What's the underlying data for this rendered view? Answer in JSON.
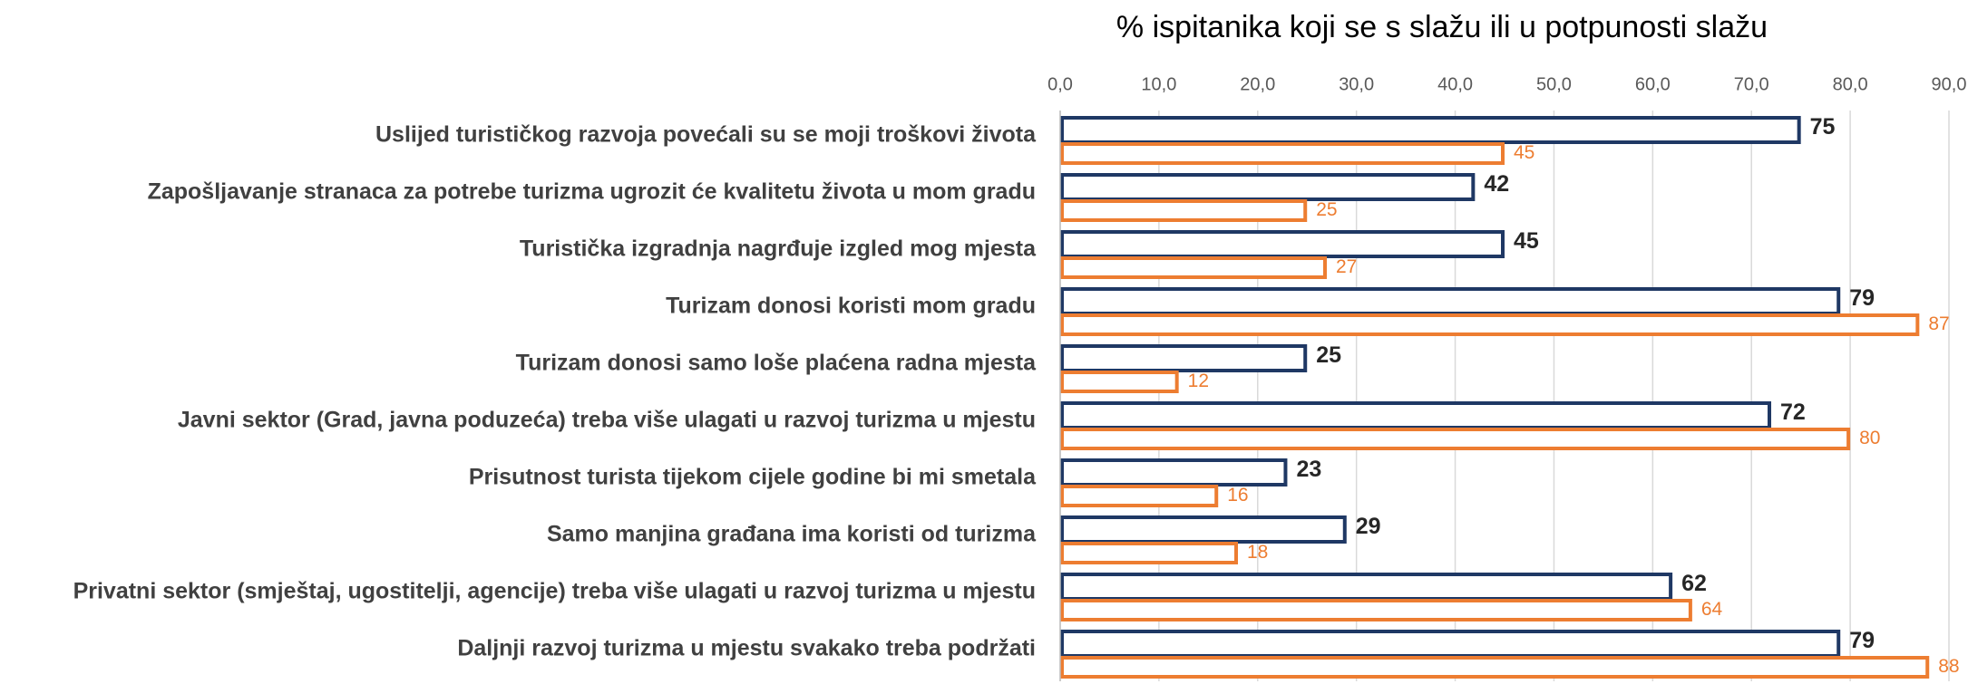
{
  "chart_data": {
    "type": "hbar",
    "title": "% ispitanika koji se s slažu ili u potpunosti slažu",
    "categories": [
      "Uslijed turističkog razvoja povećali su se moji troškovi života",
      "Zapošljavanje stranaca za potrebe turizma ugrozit će kvalitetu života u mom gradu",
      "Turistička izgradnja nagrđuje izgled mog mjesta",
      "Turizam donosi koristi mom gradu",
      "Turizam donosi samo loše plaćena radna mjesta",
      "Javni sektor (Grad, javna poduzeća) treba više ulagati u razvoj turizma u mjestu",
      "Prisutnost turista tijekom cijele godine bi mi smetala",
      "Samo manjina građana ima koristi od turizma",
      "Privatni sektor (smještaj, ugostitelji, agencije) treba više ulagati u razvoj turizma u mjestu",
      "Daljnji razvoj turizma u mjestu svakako treba podržati"
    ],
    "series": [
      {
        "color": "#1f3864",
        "values": [
          75,
          42,
          45,
          79,
          25,
          72,
          23,
          29,
          62,
          79
        ]
      },
      {
        "color": "#ed7d31",
        "values": [
          45,
          25,
          27,
          87,
          12,
          80,
          16,
          18,
          64,
          88
        ]
      }
    ],
    "xlim": [
      0,
      90
    ],
    "xticks": [
      {
        "value": 0,
        "label": "0,0"
      },
      {
        "value": 10,
        "label": "10,0"
      },
      {
        "value": 20,
        "label": "20,0"
      },
      {
        "value": 30,
        "label": "30,0"
      },
      {
        "value": 40,
        "label": "40,0"
      },
      {
        "value": 50,
        "label": "50,0"
      },
      {
        "value": 60,
        "label": "60,0"
      },
      {
        "value": 70,
        "label": "70,0"
      },
      {
        "value": 80,
        "label": "80,0"
      },
      {
        "value": 90,
        "label": "90,0"
      }
    ],
    "grid": true
  }
}
